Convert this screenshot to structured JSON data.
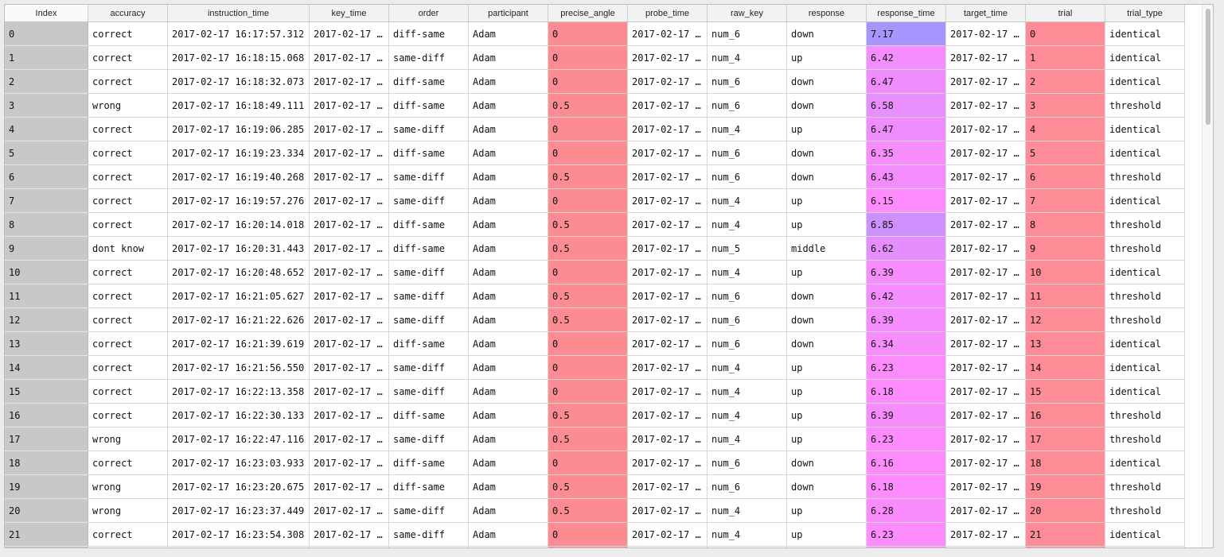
{
  "columns": [
    "Index",
    "accuracy",
    "instruction_time",
    "key_time",
    "order",
    "participant",
    "precise_angle",
    "probe_time",
    "raw_key",
    "response",
    "response_time",
    "target_time",
    "trial",
    "trial_type"
  ],
  "colors": {
    "index_bg": "#c8c8c8",
    "angle_bg": "#fd8c92",
    "trial_bg": "#fd8c97",
    "rt_hot": "#fe8cfe",
    "rt_cool": "#a794fd"
  },
  "rows": [
    {
      "idx": "0",
      "accuracy": "correct",
      "instruction_time": "2017-02-17 16:17:57.312",
      "key_time": "2017-02-17 …",
      "order": "diff-same",
      "participant": "Adam",
      "precise_angle": "0",
      "probe_time": "2017-02-17 …",
      "raw_key": "num_6",
      "response": "down",
      "response_time": "7.17",
      "target_time": "2017-02-17 …",
      "trial": "0",
      "trial_type": "identical"
    },
    {
      "idx": "1",
      "accuracy": "correct",
      "instruction_time": "2017-02-17 16:18:15.068",
      "key_time": "2017-02-17 …",
      "order": "same-diff",
      "participant": "Adam",
      "precise_angle": "0",
      "probe_time": "2017-02-17 …",
      "raw_key": "num_4",
      "response": "up",
      "response_time": "6.42",
      "target_time": "2017-02-17 …",
      "trial": "1",
      "trial_type": "identical"
    },
    {
      "idx": "2",
      "accuracy": "correct",
      "instruction_time": "2017-02-17 16:18:32.073",
      "key_time": "2017-02-17 …",
      "order": "diff-same",
      "participant": "Adam",
      "precise_angle": "0",
      "probe_time": "2017-02-17 …",
      "raw_key": "num_6",
      "response": "down",
      "response_time": "6.47",
      "target_time": "2017-02-17 …",
      "trial": "2",
      "trial_type": "identical"
    },
    {
      "idx": "3",
      "accuracy": "wrong",
      "instruction_time": "2017-02-17 16:18:49.111",
      "key_time": "2017-02-17 …",
      "order": "diff-same",
      "participant": "Adam",
      "precise_angle": "0.5",
      "probe_time": "2017-02-17 …",
      "raw_key": "num_6",
      "response": "down",
      "response_time": "6.58",
      "target_time": "2017-02-17 …",
      "trial": "3",
      "trial_type": "threshold"
    },
    {
      "idx": "4",
      "accuracy": "correct",
      "instruction_time": "2017-02-17 16:19:06.285",
      "key_time": "2017-02-17 …",
      "order": "same-diff",
      "participant": "Adam",
      "precise_angle": "0",
      "probe_time": "2017-02-17 …",
      "raw_key": "num_4",
      "response": "up",
      "response_time": "6.47",
      "target_time": "2017-02-17 …",
      "trial": "4",
      "trial_type": "identical"
    },
    {
      "idx": "5",
      "accuracy": "correct",
      "instruction_time": "2017-02-17 16:19:23.334",
      "key_time": "2017-02-17 …",
      "order": "diff-same",
      "participant": "Adam",
      "precise_angle": "0",
      "probe_time": "2017-02-17 …",
      "raw_key": "num_6",
      "response": "down",
      "response_time": "6.35",
      "target_time": "2017-02-17 …",
      "trial": "5",
      "trial_type": "identical"
    },
    {
      "idx": "6",
      "accuracy": "correct",
      "instruction_time": "2017-02-17 16:19:40.268",
      "key_time": "2017-02-17 …",
      "order": "same-diff",
      "participant": "Adam",
      "precise_angle": "0.5",
      "probe_time": "2017-02-17 …",
      "raw_key": "num_6",
      "response": "down",
      "response_time": "6.43",
      "target_time": "2017-02-17 …",
      "trial": "6",
      "trial_type": "threshold"
    },
    {
      "idx": "7",
      "accuracy": "correct",
      "instruction_time": "2017-02-17 16:19:57.276",
      "key_time": "2017-02-17 …",
      "order": "same-diff",
      "participant": "Adam",
      "precise_angle": "0",
      "probe_time": "2017-02-17 …",
      "raw_key": "num_4",
      "response": "up",
      "response_time": "6.15",
      "target_time": "2017-02-17 …",
      "trial": "7",
      "trial_type": "identical"
    },
    {
      "idx": "8",
      "accuracy": "correct",
      "instruction_time": "2017-02-17 16:20:14.018",
      "key_time": "2017-02-17 …",
      "order": "diff-same",
      "participant": "Adam",
      "precise_angle": "0.5",
      "probe_time": "2017-02-17 …",
      "raw_key": "num_4",
      "response": "up",
      "response_time": "6.85",
      "target_time": "2017-02-17 …",
      "trial": "8",
      "trial_type": "threshold"
    },
    {
      "idx": "9",
      "accuracy": "dont know",
      "instruction_time": "2017-02-17 16:20:31.443",
      "key_time": "2017-02-17 …",
      "order": "diff-same",
      "participant": "Adam",
      "precise_angle": "0.5",
      "probe_time": "2017-02-17 …",
      "raw_key": "num_5",
      "response": "middle",
      "response_time": "6.62",
      "target_time": "2017-02-17 …",
      "trial": "9",
      "trial_type": "threshold"
    },
    {
      "idx": "10",
      "accuracy": "correct",
      "instruction_time": "2017-02-17 16:20:48.652",
      "key_time": "2017-02-17 …",
      "order": "same-diff",
      "participant": "Adam",
      "precise_angle": "0",
      "probe_time": "2017-02-17 …",
      "raw_key": "num_4",
      "response": "up",
      "response_time": "6.39",
      "target_time": "2017-02-17 …",
      "trial": "10",
      "trial_type": "identical"
    },
    {
      "idx": "11",
      "accuracy": "correct",
      "instruction_time": "2017-02-17 16:21:05.627",
      "key_time": "2017-02-17 …",
      "order": "same-diff",
      "participant": "Adam",
      "precise_angle": "0.5",
      "probe_time": "2017-02-17 …",
      "raw_key": "num_6",
      "response": "down",
      "response_time": "6.42",
      "target_time": "2017-02-17 …",
      "trial": "11",
      "trial_type": "threshold"
    },
    {
      "idx": "12",
      "accuracy": "correct",
      "instruction_time": "2017-02-17 16:21:22.626",
      "key_time": "2017-02-17 …",
      "order": "same-diff",
      "participant": "Adam",
      "precise_angle": "0.5",
      "probe_time": "2017-02-17 …",
      "raw_key": "num_6",
      "response": "down",
      "response_time": "6.39",
      "target_time": "2017-02-17 …",
      "trial": "12",
      "trial_type": "threshold"
    },
    {
      "idx": "13",
      "accuracy": "correct",
      "instruction_time": "2017-02-17 16:21:39.619",
      "key_time": "2017-02-17 …",
      "order": "diff-same",
      "participant": "Adam",
      "precise_angle": "0",
      "probe_time": "2017-02-17 …",
      "raw_key": "num_6",
      "response": "down",
      "response_time": "6.34",
      "target_time": "2017-02-17 …",
      "trial": "13",
      "trial_type": "identical"
    },
    {
      "idx": "14",
      "accuracy": "correct",
      "instruction_time": "2017-02-17 16:21:56.550",
      "key_time": "2017-02-17 …",
      "order": "same-diff",
      "participant": "Adam",
      "precise_angle": "0",
      "probe_time": "2017-02-17 …",
      "raw_key": "num_4",
      "response": "up",
      "response_time": "6.23",
      "target_time": "2017-02-17 …",
      "trial": "14",
      "trial_type": "identical"
    },
    {
      "idx": "15",
      "accuracy": "correct",
      "instruction_time": "2017-02-17 16:22:13.358",
      "key_time": "2017-02-17 …",
      "order": "same-diff",
      "participant": "Adam",
      "precise_angle": "0",
      "probe_time": "2017-02-17 …",
      "raw_key": "num_4",
      "response": "up",
      "response_time": "6.18",
      "target_time": "2017-02-17 …",
      "trial": "15",
      "trial_type": "identical"
    },
    {
      "idx": "16",
      "accuracy": "correct",
      "instruction_time": "2017-02-17 16:22:30.133",
      "key_time": "2017-02-17 …",
      "order": "diff-same",
      "participant": "Adam",
      "precise_angle": "0.5",
      "probe_time": "2017-02-17 …",
      "raw_key": "num_4",
      "response": "up",
      "response_time": "6.39",
      "target_time": "2017-02-17 …",
      "trial": "16",
      "trial_type": "threshold"
    },
    {
      "idx": "17",
      "accuracy": "wrong",
      "instruction_time": "2017-02-17 16:22:47.116",
      "key_time": "2017-02-17 …",
      "order": "same-diff",
      "participant": "Adam",
      "precise_angle": "0.5",
      "probe_time": "2017-02-17 …",
      "raw_key": "num_4",
      "response": "up",
      "response_time": "6.23",
      "target_time": "2017-02-17 …",
      "trial": "17",
      "trial_type": "threshold"
    },
    {
      "idx": "18",
      "accuracy": "correct",
      "instruction_time": "2017-02-17 16:23:03.933",
      "key_time": "2017-02-17 …",
      "order": "diff-same",
      "participant": "Adam",
      "precise_angle": "0",
      "probe_time": "2017-02-17 …",
      "raw_key": "num_6",
      "response": "down",
      "response_time": "6.16",
      "target_time": "2017-02-17 …",
      "trial": "18",
      "trial_type": "identical"
    },
    {
      "idx": "19",
      "accuracy": "wrong",
      "instruction_time": "2017-02-17 16:23:20.675",
      "key_time": "2017-02-17 …",
      "order": "diff-same",
      "participant": "Adam",
      "precise_angle": "0.5",
      "probe_time": "2017-02-17 …",
      "raw_key": "num_6",
      "response": "down",
      "response_time": "6.18",
      "target_time": "2017-02-17 …",
      "trial": "19",
      "trial_type": "threshold"
    },
    {
      "idx": "20",
      "accuracy": "wrong",
      "instruction_time": "2017-02-17 16:23:37.449",
      "key_time": "2017-02-17 …",
      "order": "same-diff",
      "participant": "Adam",
      "precise_angle": "0.5",
      "probe_time": "2017-02-17 …",
      "raw_key": "num_4",
      "response": "up",
      "response_time": "6.28",
      "target_time": "2017-02-17 …",
      "trial": "20",
      "trial_type": "threshold"
    },
    {
      "idx": "21",
      "accuracy": "correct",
      "instruction_time": "2017-02-17 16:23:54.308",
      "key_time": "2017-02-17 …",
      "order": "same-diff",
      "participant": "Adam",
      "precise_angle": "0",
      "probe_time": "2017-02-17 …",
      "raw_key": "num_4",
      "response": "up",
      "response_time": "6.23",
      "target_time": "2017-02-17 …",
      "trial": "21",
      "trial_type": "identical"
    },
    {
      "idx": "",
      "accuracy": "",
      "instruction_time": "",
      "key_time": "",
      "order": "",
      "participant": "",
      "precise_angle": "",
      "probe_time": "",
      "raw_key": "",
      "response": "",
      "response_time": "",
      "target_time": "",
      "trial": "",
      "trial_type": ""
    }
  ]
}
